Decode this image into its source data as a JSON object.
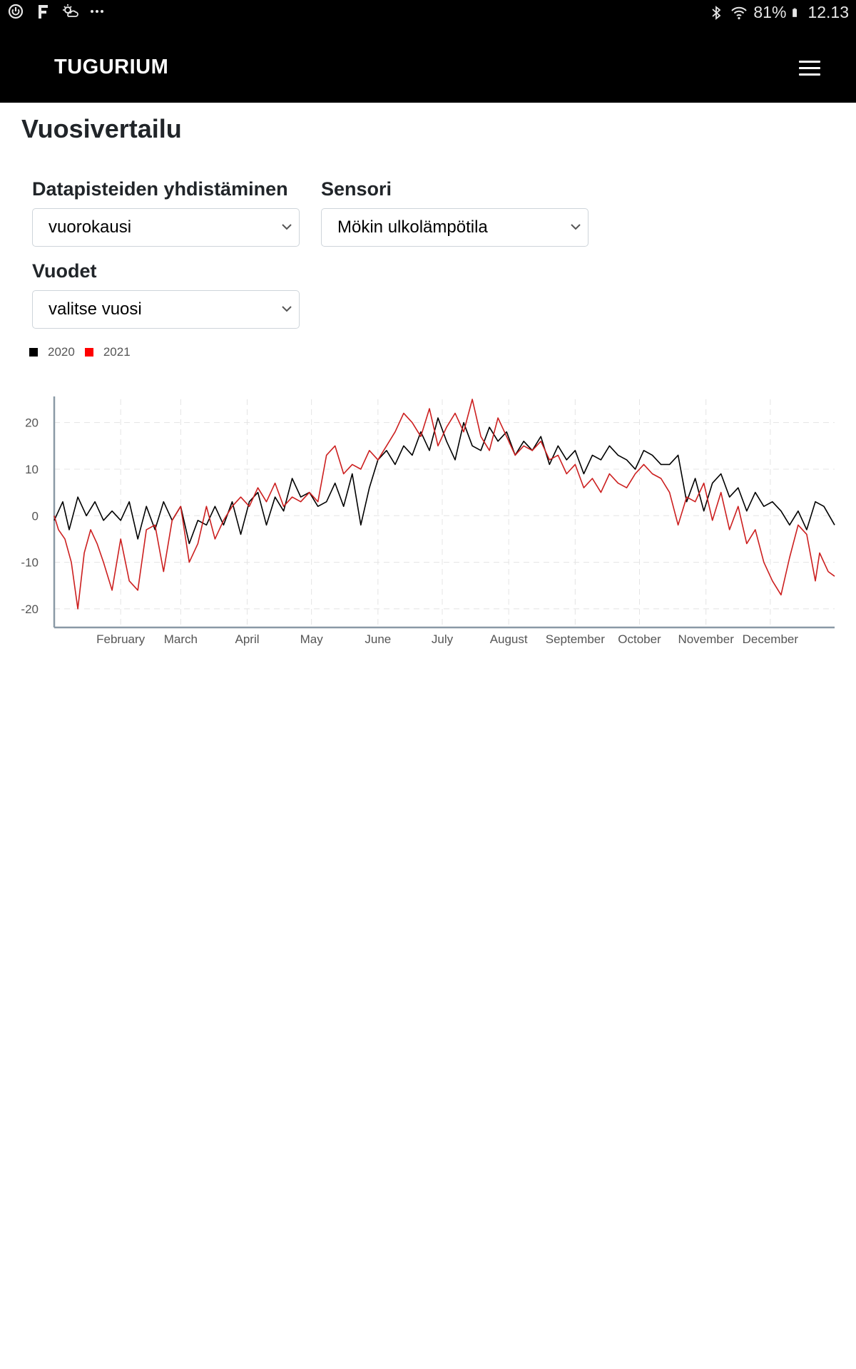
{
  "status_bar": {
    "battery": "81%",
    "time": "12.13"
  },
  "navbar": {
    "brand": "TUGURIUM",
    "menu_icon": "hamburger-menu-icon"
  },
  "page": {
    "title": "Vuosivertailu"
  },
  "filters": {
    "aggregation_label": "Datapisteiden yhdistäminen",
    "aggregation_value": "vuorokausi",
    "sensor_label": "Sensori",
    "sensor_value": "Mökin ulkolämpötila",
    "years_label": "Vuodet",
    "years_value": "valitse vuosi"
  },
  "colors": {
    "series_2020": "#000000",
    "series_2021": "#cc1f1f",
    "legend_2021": "#ff0000",
    "axis": "#8a99a6",
    "grid": "#e4e4e4"
  },
  "chart_data": {
    "type": "line",
    "x_type": "day_of_year",
    "xlim": [
      1,
      365
    ],
    "ylim": [
      -24,
      25
    ],
    "yticks": [
      20,
      10,
      0,
      -10,
      -20
    ],
    "ytick_labels": [
      "20",
      "10",
      "0",
      "-10",
      "-20"
    ],
    "xtick_labels": [
      "February",
      "March",
      "April",
      "May",
      "June",
      "July",
      "August",
      "September",
      "October",
      "November",
      "December"
    ],
    "xtick_days": [
      32,
      60,
      91,
      121,
      152,
      182,
      213,
      244,
      274,
      305,
      335
    ],
    "grid": true,
    "legend_position": "top-left",
    "series": [
      {
        "name": "2020",
        "color": "#000000",
        "x": [
          1,
          5,
          8,
          12,
          16,
          20,
          24,
          28,
          32,
          36,
          40,
          44,
          48,
          52,
          56,
          60,
          64,
          68,
          72,
          76,
          80,
          84,
          88,
          92,
          96,
          100,
          104,
          108,
          112,
          116,
          120,
          124,
          128,
          132,
          136,
          140,
          144,
          148,
          152,
          156,
          160,
          164,
          168,
          172,
          176,
          180,
          184,
          188,
          192,
          196,
          200,
          204,
          208,
          212,
          216,
          220,
          224,
          228,
          232,
          236,
          240,
          244,
          248,
          252,
          256,
          260,
          264,
          268,
          272,
          276,
          280,
          284,
          288,
          292,
          296,
          300,
          304,
          308,
          312,
          316,
          320,
          324,
          328,
          332,
          336,
          340,
          344,
          348,
          352,
          356,
          360,
          365
        ],
        "values": [
          -1,
          3,
          -3,
          4,
          0,
          3,
          -1,
          1,
          -1,
          3,
          -5,
          2,
          -3,
          3,
          -1,
          2,
          -6,
          -1,
          -2,
          2,
          -2,
          3,
          -4,
          3,
          5,
          -2,
          4,
          1,
          8,
          4,
          5,
          2,
          3,
          7,
          2,
          9,
          -2,
          6,
          12,
          14,
          11,
          15,
          13,
          18,
          14,
          21,
          16,
          12,
          20,
          15,
          14,
          19,
          16,
          18,
          13,
          16,
          14,
          17,
          11,
          15,
          12,
          14,
          9,
          13,
          12,
          15,
          13,
          12,
          10,
          14,
          13,
          11,
          11,
          13,
          3,
          8,
          1,
          7,
          9,
          4,
          6,
          1,
          5,
          2,
          3,
          1,
          -2,
          1,
          -3,
          3,
          2,
          -2
        ]
      },
      {
        "name": "2021",
        "color": "#cc1f1f",
        "x": [
          1,
          3,
          6,
          9,
          12,
          15,
          18,
          21,
          24,
          28,
          32,
          36,
          40,
          44,
          48,
          52,
          56,
          60,
          64,
          68,
          72,
          76,
          80,
          84,
          88,
          92,
          96,
          100,
          104,
          108,
          112,
          116,
          120,
          124,
          128,
          132,
          136,
          140,
          144,
          148,
          152,
          156,
          160,
          164,
          168,
          172,
          176,
          180,
          184,
          188,
          192,
          196,
          200,
          204,
          208,
          212,
          216,
          220,
          224,
          228,
          232,
          236,
          240,
          244,
          248,
          252,
          256,
          260,
          264,
          268,
          272,
          276,
          280,
          284,
          288,
          292,
          296,
          300,
          304,
          308,
          312,
          316,
          320,
          324,
          328,
          332,
          336,
          340,
          344,
          348,
          352,
          356,
          358,
          360,
          362,
          365
        ],
        "values": [
          0,
          -3,
          -5,
          -10,
          -20,
          -8,
          -3,
          -6,
          -10,
          -16,
          -5,
          -14,
          -16,
          -3,
          -2,
          -12,
          -1,
          2,
          -10,
          -6,
          2,
          -5,
          -1,
          2,
          4,
          2,
          6,
          3,
          7,
          2,
          4,
          3,
          5,
          3,
          13,
          15,
          9,
          11,
          10,
          14,
          12,
          15,
          18,
          22,
          20,
          17,
          23,
          15,
          19,
          22,
          18,
          25,
          17,
          14,
          21,
          17,
          13,
          15,
          14,
          16,
          12,
          13,
          9,
          11,
          6,
          8,
          5,
          9,
          7,
          6,
          9,
          11,
          9,
          8,
          5,
          -2,
          4,
          3,
          7,
          -1,
          5,
          -3,
          2,
          -6,
          -3,
          -10,
          -14,
          -17,
          -9,
          -2,
          -4,
          -14,
          -8,
          -10,
          -12,
          -13
        ]
      }
    ]
  }
}
